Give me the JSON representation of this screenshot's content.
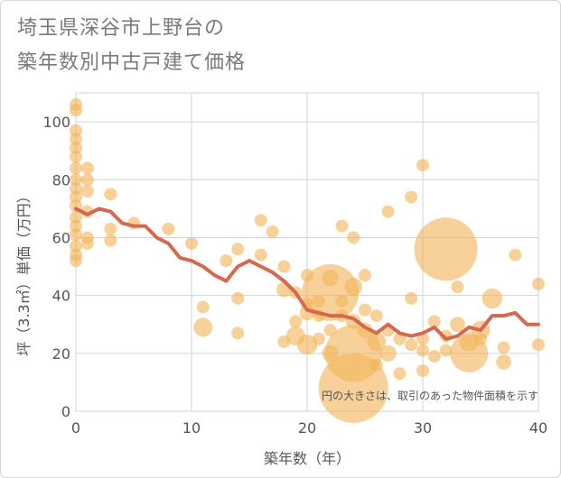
{
  "title_line1": "埼玉県深谷市上野台の",
  "title_line2": "築年数別中古戸建て価格",
  "chart_data": {
    "type": "scatter",
    "title": "埼玉県深谷市上野台の築年数別中古戸建て価格",
    "xlabel": "築年数（年）",
    "ylabel": "坪（3.3㎡）単価（万円）",
    "xlim": [
      0,
      40
    ],
    "ylim": [
      0,
      110
    ],
    "xticks": [
      0,
      10,
      20,
      30,
      40
    ],
    "yticks": [
      0,
      20,
      40,
      60,
      80,
      100
    ],
    "xtick_labels": [
      "0",
      "10",
      "20",
      "30",
      "40"
    ],
    "ytick_labels": [
      "0",
      "20",
      "40",
      "60",
      "80",
      "100"
    ],
    "note": "円の大きさは、取引のあった物件面積を示す",
    "colors": {
      "bubble": "#f2b45a",
      "line": "#d4694f",
      "grid": "#c9d6e0"
    },
    "bubbles": [
      {
        "x": 0,
        "y": 106,
        "s": 1
      },
      {
        "x": 0,
        "y": 104,
        "s": 1
      },
      {
        "x": 0,
        "y": 97,
        "s": 1
      },
      {
        "x": 0,
        "y": 94,
        "s": 1
      },
      {
        "x": 0,
        "y": 91,
        "s": 1
      },
      {
        "x": 0,
        "y": 88,
        "s": 1
      },
      {
        "x": 0,
        "y": 84,
        "s": 1
      },
      {
        "x": 0,
        "y": 80,
        "s": 1
      },
      {
        "x": 0,
        "y": 77,
        "s": 1
      },
      {
        "x": 0,
        "y": 74,
        "s": 1
      },
      {
        "x": 0,
        "y": 71,
        "s": 1
      },
      {
        "x": 0,
        "y": 67,
        "s": 1
      },
      {
        "x": 0,
        "y": 64,
        "s": 1
      },
      {
        "x": 0,
        "y": 61,
        "s": 1
      },
      {
        "x": 0,
        "y": 57,
        "s": 1
      },
      {
        "x": 0,
        "y": 54,
        "s": 1
      },
      {
        "x": 0,
        "y": 52,
        "s": 1
      },
      {
        "x": 1,
        "y": 84,
        "s": 1
      },
      {
        "x": 1,
        "y": 80,
        "s": 1
      },
      {
        "x": 1,
        "y": 76,
        "s": 1
      },
      {
        "x": 1,
        "y": 69,
        "s": 1
      },
      {
        "x": 1,
        "y": 60,
        "s": 1
      },
      {
        "x": 1,
        "y": 58,
        "s": 1
      },
      {
        "x": 3,
        "y": 75,
        "s": 1
      },
      {
        "x": 3,
        "y": 63,
        "s": 1
      },
      {
        "x": 3,
        "y": 59,
        "s": 1
      },
      {
        "x": 5,
        "y": 65,
        "s": 1
      },
      {
        "x": 8,
        "y": 63,
        "s": 1
      },
      {
        "x": 10,
        "y": 58,
        "s": 1
      },
      {
        "x": 11,
        "y": 36,
        "s": 1
      },
      {
        "x": 11,
        "y": 29,
        "s": 1.5
      },
      {
        "x": 13,
        "y": 52,
        "s": 1
      },
      {
        "x": 14,
        "y": 56,
        "s": 1
      },
      {
        "x": 14,
        "y": 39,
        "s": 1
      },
      {
        "x": 14,
        "y": 27,
        "s": 1
      },
      {
        "x": 16,
        "y": 66,
        "s": 1
      },
      {
        "x": 16,
        "y": 54,
        "s": 1
      },
      {
        "x": 17,
        "y": 62,
        "s": 1
      },
      {
        "x": 18,
        "y": 50,
        "s": 1
      },
      {
        "x": 18,
        "y": 42,
        "s": 1.2
      },
      {
        "x": 18,
        "y": 24,
        "s": 1
      },
      {
        "x": 19,
        "y": 41,
        "s": 1
      },
      {
        "x": 19,
        "y": 31,
        "s": 1
      },
      {
        "x": 19,
        "y": 26,
        "s": 1.5
      },
      {
        "x": 20,
        "y": 47,
        "s": 1
      },
      {
        "x": 20,
        "y": 37,
        "s": 1
      },
      {
        "x": 20,
        "y": 34,
        "s": 1.2
      },
      {
        "x": 20,
        "y": 23,
        "s": 1.6
      },
      {
        "x": 21,
        "y": 38,
        "s": 1
      },
      {
        "x": 21,
        "y": 33,
        "s": 1
      },
      {
        "x": 21,
        "y": 25,
        "s": 1
      },
      {
        "x": 22,
        "y": 46,
        "s": 1.3
      },
      {
        "x": 22,
        "y": 41,
        "s": 4.5
      },
      {
        "x": 22,
        "y": 28,
        "s": 1
      },
      {
        "x": 22,
        "y": 20,
        "s": 1.3
      },
      {
        "x": 23,
        "y": 64,
        "s": 1
      },
      {
        "x": 23,
        "y": 38,
        "s": 1
      },
      {
        "x": 23,
        "y": 33,
        "s": 1
      },
      {
        "x": 24,
        "y": 60,
        "s": 1
      },
      {
        "x": 24,
        "y": 43,
        "s": 1.4
      },
      {
        "x": 24,
        "y": 31,
        "s": 1.2
      },
      {
        "x": 24,
        "y": 20,
        "s": 4.5
      },
      {
        "x": 24,
        "y": 8,
        "s": 5.5
      },
      {
        "x": 25,
        "y": 47,
        "s": 1
      },
      {
        "x": 25,
        "y": 35,
        "s": 1
      },
      {
        "x": 25,
        "y": 28,
        "s": 1.2
      },
      {
        "x": 26,
        "y": 33,
        "s": 1
      },
      {
        "x": 26,
        "y": 24,
        "s": 1.5
      },
      {
        "x": 26,
        "y": 16,
        "s": 1
      },
      {
        "x": 27,
        "y": 69,
        "s": 1
      },
      {
        "x": 27,
        "y": 28,
        "s": 1
      },
      {
        "x": 27,
        "y": 20,
        "s": 1.3
      },
      {
        "x": 28,
        "y": 25,
        "s": 1
      },
      {
        "x": 28,
        "y": 13,
        "s": 1
      },
      {
        "x": 29,
        "y": 74,
        "s": 1
      },
      {
        "x": 29,
        "y": 39,
        "s": 1
      },
      {
        "x": 29,
        "y": 23,
        "s": 1
      },
      {
        "x": 30,
        "y": 85,
        "s": 1
      },
      {
        "x": 30,
        "y": 25,
        "s": 1
      },
      {
        "x": 30,
        "y": 21,
        "s": 1
      },
      {
        "x": 30,
        "y": 14,
        "s": 1
      },
      {
        "x": 31,
        "y": 31,
        "s": 1
      },
      {
        "x": 31,
        "y": 19,
        "s": 1
      },
      {
        "x": 32,
        "y": 56,
        "s": 5
      },
      {
        "x": 32,
        "y": 26,
        "s": 1
      },
      {
        "x": 32,
        "y": 21,
        "s": 1
      },
      {
        "x": 33,
        "y": 43,
        "s": 1
      },
      {
        "x": 33,
        "y": 30,
        "s": 1.2
      },
      {
        "x": 34,
        "y": 20,
        "s": 3
      },
      {
        "x": 34,
        "y": 24,
        "s": 1.5
      },
      {
        "x": 35,
        "y": 28,
        "s": 1.5
      },
      {
        "x": 35,
        "y": 25,
        "s": 1
      },
      {
        "x": 36,
        "y": 39,
        "s": 1.6
      },
      {
        "x": 37,
        "y": 22,
        "s": 1
      },
      {
        "x": 37,
        "y": 17,
        "s": 1.2
      },
      {
        "x": 38,
        "y": 54,
        "s": 1
      },
      {
        "x": 40,
        "y": 44,
        "s": 1
      },
      {
        "x": 40,
        "y": 23,
        "s": 1
      }
    ],
    "trend": [
      {
        "x": 0,
        "y": 70
      },
      {
        "x": 1,
        "y": 68
      },
      {
        "x": 2,
        "y": 70
      },
      {
        "x": 3,
        "y": 69
      },
      {
        "x": 4,
        "y": 65
      },
      {
        "x": 5,
        "y": 64
      },
      {
        "x": 6,
        "y": 64
      },
      {
        "x": 7,
        "y": 60
      },
      {
        "x": 8,
        "y": 58
      },
      {
        "x": 9,
        "y": 53
      },
      {
        "x": 10,
        "y": 52
      },
      {
        "x": 11,
        "y": 50
      },
      {
        "x": 12,
        "y": 47
      },
      {
        "x": 13,
        "y": 45
      },
      {
        "x": 14,
        "y": 50
      },
      {
        "x": 15,
        "y": 52
      },
      {
        "x": 16,
        "y": 50
      },
      {
        "x": 17,
        "y": 48
      },
      {
        "x": 18,
        "y": 45
      },
      {
        "x": 19,
        "y": 41
      },
      {
        "x": 20,
        "y": 35
      },
      {
        "x": 21,
        "y": 34
      },
      {
        "x": 22,
        "y": 33
      },
      {
        "x": 23,
        "y": 33
      },
      {
        "x": 24,
        "y": 32
      },
      {
        "x": 25,
        "y": 29
      },
      {
        "x": 26,
        "y": 27
      },
      {
        "x": 27,
        "y": 30
      },
      {
        "x": 28,
        "y": 27
      },
      {
        "x": 29,
        "y": 26
      },
      {
        "x": 30,
        "y": 27
      },
      {
        "x": 31,
        "y": 29
      },
      {
        "x": 32,
        "y": 25
      },
      {
        "x": 33,
        "y": 26
      },
      {
        "x": 34,
        "y": 29
      },
      {
        "x": 35,
        "y": 28
      },
      {
        "x": 36,
        "y": 33
      },
      {
        "x": 37,
        "y": 33
      },
      {
        "x": 38,
        "y": 34
      },
      {
        "x": 39,
        "y": 30
      },
      {
        "x": 40,
        "y": 30
      }
    ]
  }
}
